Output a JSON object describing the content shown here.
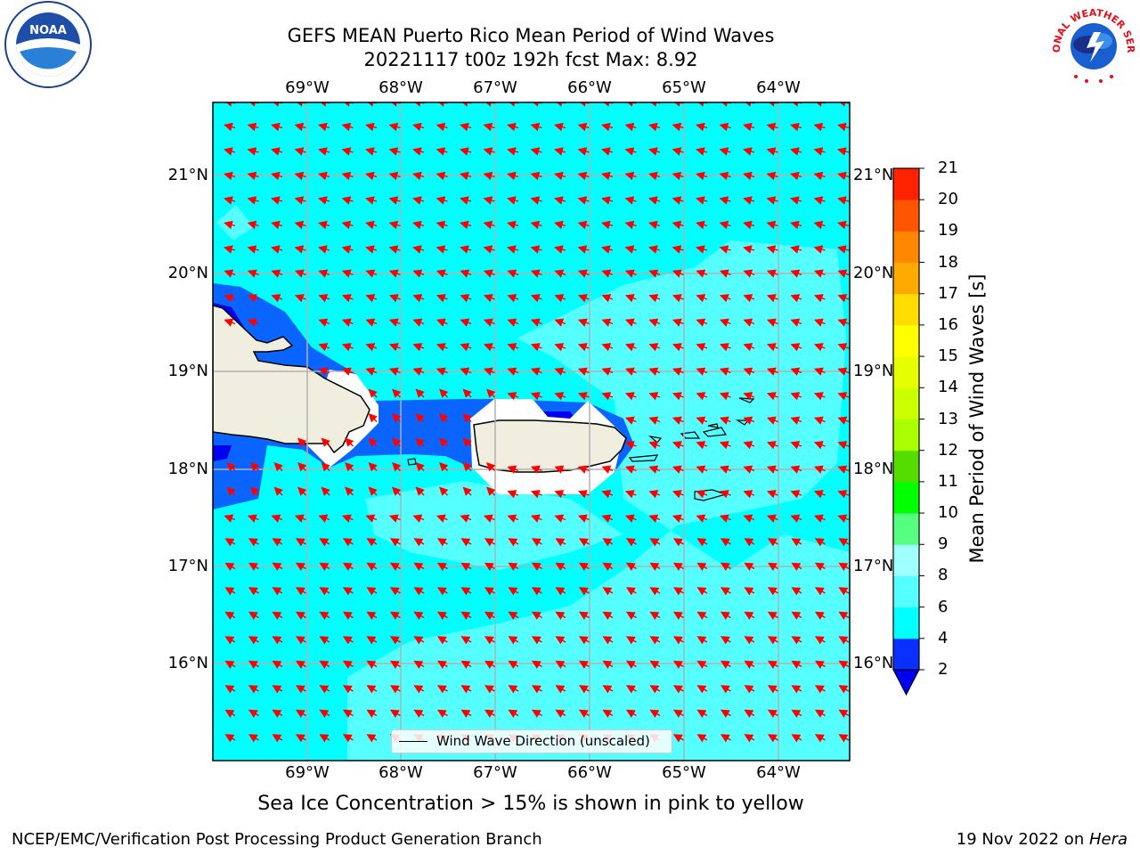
{
  "title_line1": "GEFS MEAN Puerto Rico Mean Period of Wind Waves",
  "title_line2": "20221117 t00z 192h fcst   Max: 8.92",
  "subtitle": "Sea Ice Concentration > 15% is shown in pink to yellow",
  "footer_left": "NCEP/EMC/Verification Post Processing Product Generation Branch",
  "footer_right_prefix": "19 Nov 2022 on ",
  "footer_right_host": "Hera",
  "legend_label": "Wind Wave Direction (unscaled)",
  "logos": {
    "noaa": "NOAA",
    "nws": "NATIONAL WEATHER SERVICE"
  },
  "lon_labels": [
    "69°W",
    "68°W",
    "67°W",
    "66°W",
    "65°W",
    "64°W"
  ],
  "lat_labels": [
    "21°N",
    "20°N",
    "19°N",
    "18°N",
    "17°N",
    "16°N"
  ],
  "colorbar": {
    "label": "Mean Period of Wind Waves [s]",
    "ticks": [
      "2",
      "4",
      "6",
      "8",
      "9",
      "10",
      "11",
      "12",
      "13",
      "14",
      "15",
      "16",
      "17",
      "18",
      "19",
      "20",
      "21"
    ],
    "colors": [
      "#0a30ff",
      "#00ffff",
      "#55ffff",
      "#a0ffff",
      "#55ff80",
      "#00ff00",
      "#55dd00",
      "#aaff00",
      "#ccff00",
      "#e6ff00",
      "#ffff00",
      "#ffdd00",
      "#ffaa00",
      "#ff8800",
      "#ff5500",
      "#ff2200"
    ],
    "under_color": "#0000ee"
  },
  "colors": {
    "ocean_base": "#00ffff",
    "ocean_light": "#55ffff",
    "ocean_dark": "#0a64ff",
    "ocean_deep": "#0000ee",
    "land": "#f0efdf",
    "arrow": "#ff0000"
  }
}
